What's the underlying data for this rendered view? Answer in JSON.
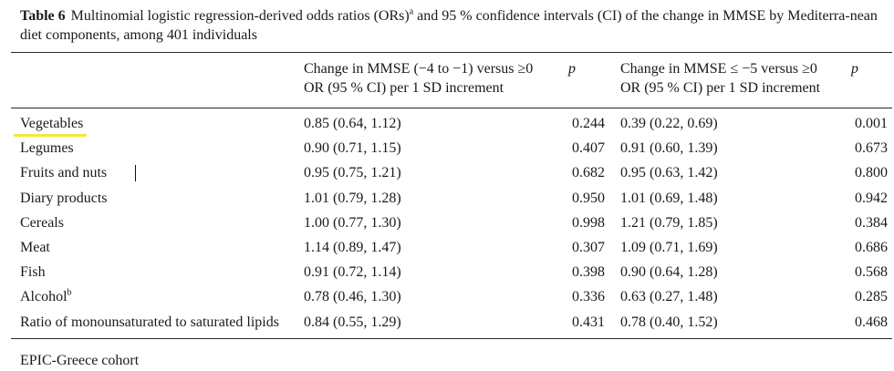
{
  "caption": {
    "label": "Table 6",
    "text_before_sup": "Multinomial logistic regression-derived odds ratios (ORs)",
    "sup": "a",
    "text_after_sup": " and 95 % confidence intervals (CI) of the change in MMSE by Mediterra-nean diet components, among 401 individuals"
  },
  "headers": {
    "col1_line1": "Change in MMSE (−4 to −1) versus ≥0",
    "col1_line2": "OR (95 % CI) per 1 SD increment",
    "p1": "p",
    "col2_line1": "Change in MMSE ≤ −5 versus ≥0",
    "col2_line2": "OR (95 % CI) per 1 SD increment",
    "p2": "p"
  },
  "rows": [
    {
      "name": "Vegetables",
      "sup": "",
      "or1": "0.85 (0.64, 1.12)",
      "p1": "0.244",
      "or2": "0.39 (0.22, 0.69)",
      "p2": "0.001"
    },
    {
      "name": "Legumes",
      "sup": "",
      "or1": "0.90 (0.71, 1.15)",
      "p1": "0.407",
      "or2": "0.91 (0.60, 1.39)",
      "p2": "0.673"
    },
    {
      "name": "Fruits and nuts",
      "sup": "",
      "or1": "0.95 (0.75, 1.21)",
      "p1": "0.682",
      "or2": "0.95 (0.63, 1.42)",
      "p2": "0.800"
    },
    {
      "name": "Diary products",
      "sup": "",
      "or1": "1.01 (0.79, 1.28)",
      "p1": "0.950",
      "or2": "1.01 (0.69, 1.48)",
      "p2": "0.942"
    },
    {
      "name": "Cereals",
      "sup": "",
      "or1": "1.00 (0.77, 1.30)",
      "p1": "0.998",
      "or2": "1.21 (0.79, 1.85)",
      "p2": "0.384"
    },
    {
      "name": "Meat",
      "sup": "",
      "or1": "1.14 (0.89, 1.47)",
      "p1": "0.307",
      "or2": "1.09 (0.71, 1.69)",
      "p2": "0.686"
    },
    {
      "name": "Fish",
      "sup": "",
      "or1": "0.91 (0.72, 1.14)",
      "p1": "0.398",
      "or2": "0.90 (0.64, 1.28)",
      "p2": "0.568"
    },
    {
      "name": "Alcohol",
      "sup": "b",
      "or1": "0.78 (0.46, 1.30)",
      "p1": "0.336",
      "or2": "0.63 (0.27, 1.48)",
      "p2": "0.285"
    },
    {
      "name": "Ratio of monounsaturated to saturated lipids",
      "sup": "",
      "or1": "0.84 (0.55, 1.29)",
      "p1": "0.431",
      "or2": "0.78 (0.40, 1.52)",
      "p2": "0.468"
    }
  ],
  "footnote": "EPIC-Greece cohort",
  "colors": {
    "highlight": "#f2e936",
    "text": "#1a1a1a",
    "rule": "#2a2a2a"
  }
}
